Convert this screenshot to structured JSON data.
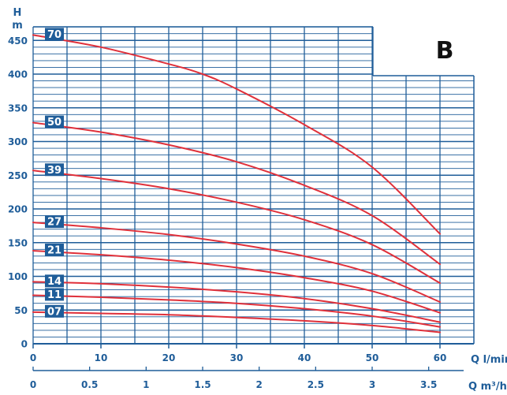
{
  "colors": {
    "grid": "#1f5d99",
    "curve": "#e0303a",
    "badge": "#1f5d99",
    "background": "#ffffff"
  },
  "chart_data": {
    "type": "line",
    "corner_label": "B",
    "y_axis": {
      "label_top": "H",
      "label_bottom": "m",
      "range": [
        0,
        470
      ],
      "ticks": [
        0,
        50,
        100,
        150,
        200,
        250,
        300,
        350,
        400,
        450
      ]
    },
    "x_axis_primary": {
      "label": "Q l/min",
      "range": [
        0,
        65
      ],
      "ticks": [
        0,
        10,
        20,
        30,
        40,
        50,
        60
      ]
    },
    "x_axis_secondary": {
      "label": "Q m³/h",
      "ticks": [
        "0",
        "0.5",
        "1",
        "1.5",
        "2",
        "2.5",
        "3",
        "3.5"
      ],
      "tick_values": [
        0,
        0.5,
        1,
        1.5,
        2,
        2.5,
        3,
        3.5
      ]
    },
    "series": [
      {
        "name": "70",
        "x": [
          0,
          10,
          20,
          25,
          30,
          40,
          50,
          60
        ],
        "y": [
          458,
          440,
          415,
          400,
          378,
          325,
          262,
          163
        ]
      },
      {
        "name": "50",
        "x": [
          0,
          10,
          20,
          30,
          40,
          50,
          60
        ],
        "y": [
          328,
          314,
          295,
          270,
          235,
          190,
          118
        ]
      },
      {
        "name": "39",
        "x": [
          0,
          10,
          20,
          30,
          40,
          50,
          60
        ],
        "y": [
          257,
          245,
          230,
          210,
          184,
          147,
          90
        ]
      },
      {
        "name": "27",
        "x": [
          0,
          10,
          20,
          30,
          40,
          50,
          60
        ],
        "y": [
          180,
          172,
          162,
          148,
          130,
          104,
          62
        ]
      },
      {
        "name": "21",
        "x": [
          0,
          10,
          20,
          30,
          40,
          50,
          60
        ],
        "y": [
          138,
          132,
          124,
          113,
          98,
          78,
          46
        ]
      },
      {
        "name": "14",
        "x": [
          0,
          10,
          20,
          30,
          40,
          50,
          60
        ],
        "y": [
          92,
          89,
          84,
          77,
          67,
          52,
          32
        ]
      },
      {
        "name": "11",
        "x": [
          0,
          10,
          20,
          30,
          40,
          50,
          60
        ],
        "y": [
          72,
          69,
          65,
          60,
          52,
          41,
          25
        ]
      },
      {
        "name": "07",
        "x": [
          0,
          10,
          20,
          30,
          40,
          50,
          60
        ],
        "y": [
          47,
          45,
          43,
          39,
          34,
          27,
          17
        ]
      }
    ]
  }
}
